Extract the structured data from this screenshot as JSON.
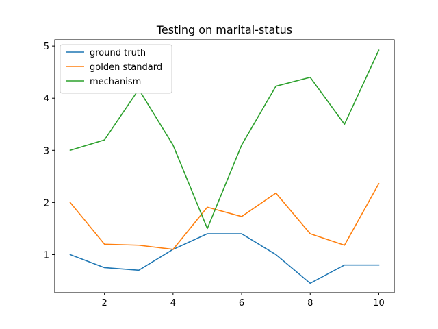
{
  "chart_data": {
    "type": "line",
    "title": "Testing on marital-status",
    "xlabel": "",
    "ylabel": "",
    "x": [
      1,
      2,
      3,
      4,
      5,
      6,
      7,
      8,
      9,
      10
    ],
    "xlim": [
      0.55,
      10.45
    ],
    "ylim": [
      0.27,
      5.12
    ],
    "xticks": [
      2,
      4,
      6,
      8,
      10
    ],
    "yticks": [
      1,
      2,
      3,
      4,
      5
    ],
    "grid": false,
    "legend_position": "top-left",
    "series": [
      {
        "name": "ground truth",
        "color": "#1f77b4",
        "values": [
          1.0,
          0.75,
          0.7,
          1.1,
          1.4,
          1.4,
          1.0,
          0.45,
          0.8,
          0.8
        ]
      },
      {
        "name": "golden standard",
        "color": "#ff7f0e",
        "values": [
          2.0,
          1.2,
          1.18,
          1.1,
          1.91,
          1.73,
          2.18,
          1.4,
          1.18,
          2.36
        ]
      },
      {
        "name": "mechanism",
        "color": "#2ca02c",
        "values": [
          3.0,
          3.2,
          4.17,
          3.1,
          1.5,
          3.1,
          4.23,
          4.4,
          3.5,
          4.92
        ]
      }
    ]
  }
}
